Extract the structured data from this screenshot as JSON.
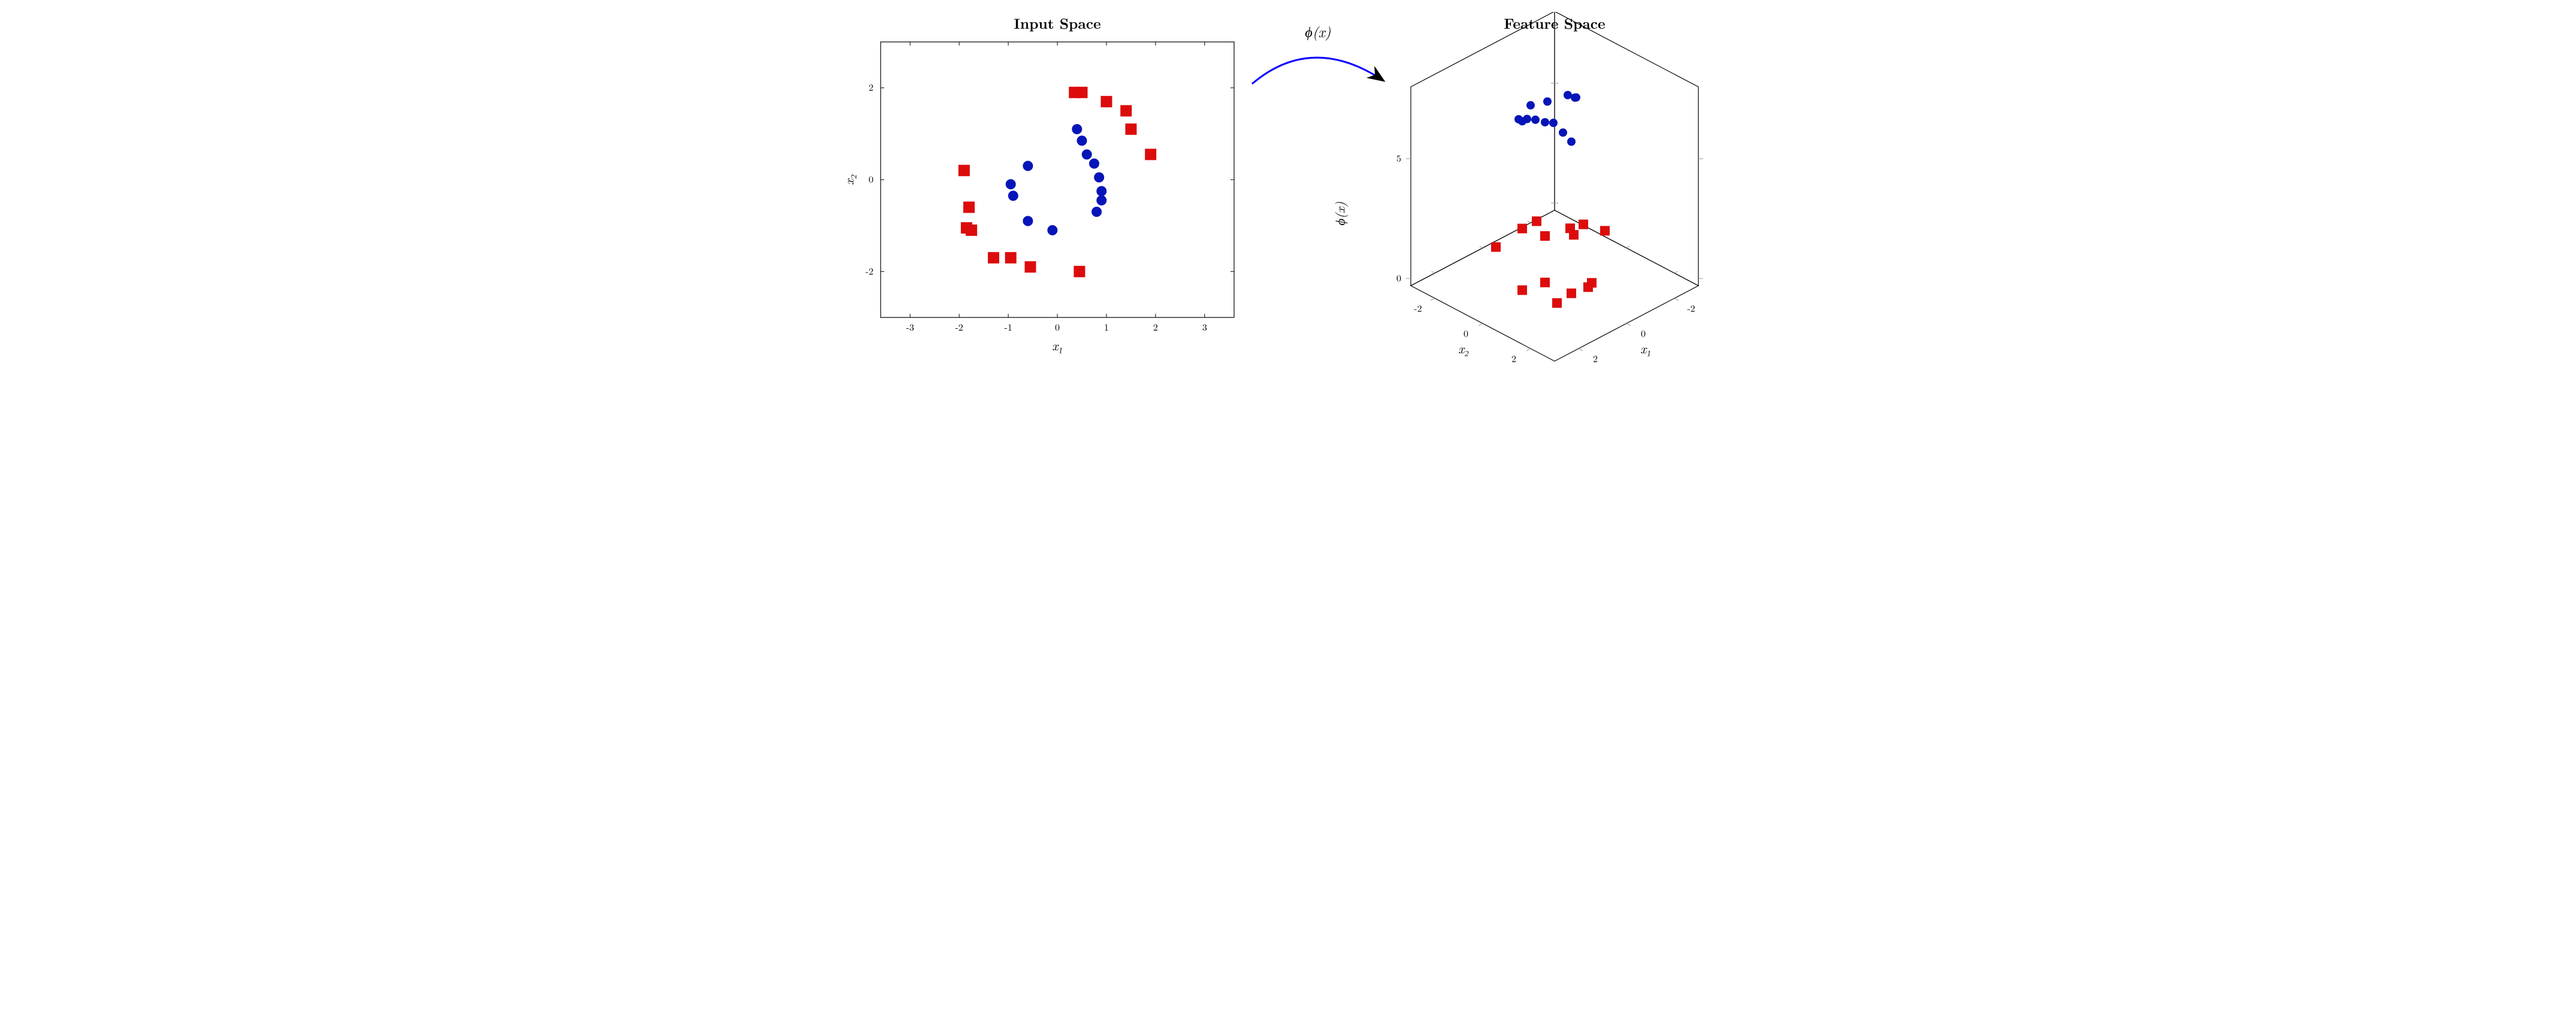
{
  "left": {
    "title": "Input Space",
    "xlabel": "x₁",
    "ylabel": "x₂",
    "xlim": [
      -3.6,
      3.6
    ],
    "ylim": [
      -3.0,
      3.0
    ],
    "xticks": [
      -3,
      -2,
      -1,
      0,
      1,
      2,
      3
    ],
    "yticks": [
      -2,
      0,
      2
    ],
    "blue": {
      "color": "#0515b8",
      "marker": "circle",
      "size": 8,
      "points": [
        [
          -0.95,
          -0.1
        ],
        [
          -0.9,
          -0.35
        ],
        [
          -0.6,
          0.3
        ],
        [
          -0.6,
          -0.9
        ],
        [
          -0.1,
          -1.1
        ],
        [
          0.4,
          1.1
        ],
        [
          0.5,
          0.85
        ],
        [
          0.6,
          0.55
        ],
        [
          0.75,
          0.35
        ],
        [
          0.85,
          0.05
        ],
        [
          0.9,
          -0.25
        ],
        [
          0.9,
          -0.45
        ],
        [
          0.8,
          -0.7
        ]
      ]
    },
    "red": {
      "color": "#dc0c0c",
      "marker": "square",
      "size": 9,
      "points": [
        [
          -1.9,
          0.2
        ],
        [
          -1.8,
          -0.6
        ],
        [
          -1.85,
          -1.05
        ],
        [
          -1.75,
          -1.1
        ],
        [
          -1.3,
          -1.7
        ],
        [
          -0.95,
          -1.7
        ],
        [
          -0.55,
          -1.9
        ],
        [
          0.35,
          1.9
        ],
        [
          0.5,
          1.9
        ],
        [
          1.0,
          1.7
        ],
        [
          0.45,
          -2.0
        ],
        [
          1.4,
          1.5
        ],
        [
          1.5,
          1.1
        ],
        [
          1.9,
          0.55
        ]
      ]
    }
  },
  "arrow": {
    "label": "ϕ(x)",
    "color": "#0b00ff",
    "label_fontsize": 24
  },
  "right": {
    "title": "Feature Space",
    "xlabel": "x₁",
    "ylabel": "x₂",
    "zlabel": "ϕ(x)",
    "xticks": [
      -2,
      0,
      2
    ],
    "yticks": [
      -2,
      0,
      2
    ],
    "zticks": [
      0,
      5
    ],
    "xlim": [
      -3,
      3
    ],
    "ylim": [
      -3,
      3
    ],
    "zlim": [
      -0.3,
      8
    ],
    "blue": {
      "color": "#0515b8",
      "marker": "circle",
      "size": 7,
      "points": [
        [
          -0.95,
          -0.1,
          7.0
        ],
        [
          -0.9,
          -0.35,
          7.0
        ],
        [
          -0.6,
          0.3,
          7.4
        ],
        [
          -0.6,
          -0.9,
          6.6
        ],
        [
          -0.1,
          -1.1,
          6.6
        ],
        [
          0.4,
          1.1,
          6.5
        ],
        [
          0.5,
          0.85,
          6.8
        ],
        [
          0.6,
          0.55,
          7.1
        ],
        [
          0.75,
          0.35,
          7.1
        ],
        [
          0.85,
          0.05,
          7.1
        ],
        [
          0.9,
          -0.25,
          7.0
        ],
        [
          0.9,
          -0.45,
          6.8
        ],
        [
          0.8,
          -0.7,
          6.7
        ]
      ]
    },
    "red": {
      "color": "#dc0c0c",
      "marker": "square",
      "size": 8,
      "points": [
        [
          -1.9,
          0.2,
          1.1
        ],
        [
          -1.8,
          -0.6,
          1.0
        ],
        [
          -1.85,
          -1.05,
          0.3
        ],
        [
          -1.75,
          -1.1,
          0.6
        ],
        [
          -1.3,
          -1.7,
          0.2
        ],
        [
          -0.95,
          -1.7,
          1.0
        ],
        [
          -0.55,
          -1.9,
          0.8
        ],
        [
          0.35,
          1.9,
          1.0
        ],
        [
          0.5,
          1.9,
          0.9
        ],
        [
          1.0,
          1.7,
          0.8
        ],
        [
          0.45,
          -2.0,
          0.5
        ],
        [
          1.4,
          1.5,
          0.5
        ],
        [
          1.5,
          1.1,
          1.2
        ],
        [
          1.9,
          0.55,
          0.8
        ]
      ]
    }
  },
  "colors": {
    "axis": "#000000",
    "background": "#ffffff",
    "tick": "#969696"
  },
  "fontsize": {
    "title": 24,
    "axis_label": 22,
    "tick": 16
  }
}
